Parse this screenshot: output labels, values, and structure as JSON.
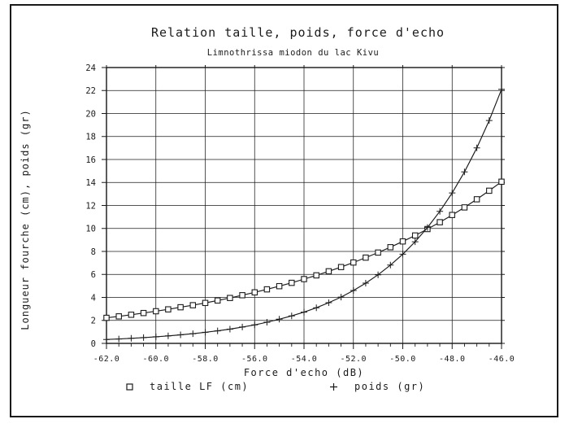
{
  "page": {
    "background": "#ffffff",
    "ink": "#1b1b1b"
  },
  "chart_data": {
    "type": "line",
    "title": "Relation taille, poids, force d'echo",
    "subtitle": "Limnothrissa miodon du lac Kivu",
    "xlabel": "Force d'echo (dB)",
    "ylabel": "Longueur fourche (cm), poids (gr)",
    "xlim": [
      -62,
      -46
    ],
    "ylim": [
      0,
      24
    ],
    "x_ticks": [
      -62,
      -60,
      -58,
      -56,
      -54,
      -52,
      -50,
      -48,
      -46
    ],
    "x_tick_labels": [
      "-62.0",
      "-60.0",
      "-58.0",
      "-56.0",
      "-54.0",
      "-52.0",
      "-50.0",
      "-48.0",
      "-46.0"
    ],
    "y_ticks": [
      0,
      2,
      4,
      6,
      8,
      10,
      12,
      14,
      16,
      18,
      20,
      22,
      24
    ],
    "y_tick_labels": [
      "0",
      "2",
      "4",
      "6",
      "8",
      "10",
      "12",
      "14",
      "16",
      "18",
      "20",
      "22",
      "24"
    ],
    "x_minor_step": 0.5,
    "grid": true,
    "legend_position": "bottom",
    "x": [
      -62,
      -61.5,
      -61,
      -60.5,
      -60,
      -59.5,
      -59,
      -58.5,
      -58,
      -57.5,
      -57,
      -56.5,
      -56,
      -55.5,
      -55,
      -54.5,
      -54,
      -53.5,
      -53,
      -52.5,
      -52,
      -51.5,
      -51,
      -50.5,
      -50,
      -49.5,
      -49,
      -48.5,
      -48,
      -47.5,
      -47,
      -46.5,
      -46
    ],
    "series": [
      {
        "name": "taille LF (cm)",
        "marker": "square",
        "values": [
          2.22,
          2.35,
          2.49,
          2.64,
          2.8,
          2.96,
          3.14,
          3.32,
          3.52,
          3.73,
          3.95,
          4.19,
          4.44,
          4.7,
          4.98,
          5.27,
          5.59,
          5.92,
          6.27,
          6.64,
          7.04,
          7.46,
          7.9,
          8.37,
          8.87,
          9.39,
          9.95,
          10.54,
          11.17,
          11.83,
          12.54,
          13.28,
          14.07
        ]
      },
      {
        "name": "poids (gr)",
        "marker": "plus",
        "values": [
          0.34,
          0.38,
          0.44,
          0.5,
          0.57,
          0.65,
          0.74,
          0.84,
          0.96,
          1.09,
          1.24,
          1.42,
          1.61,
          1.84,
          2.1,
          2.39,
          2.72,
          3.1,
          3.54,
          4.03,
          4.6,
          5.24,
          5.97,
          6.81,
          7.76,
          8.84,
          10.08,
          11.49,
          13.09,
          14.92,
          17.01,
          19.39,
          22.1
        ]
      }
    ]
  }
}
